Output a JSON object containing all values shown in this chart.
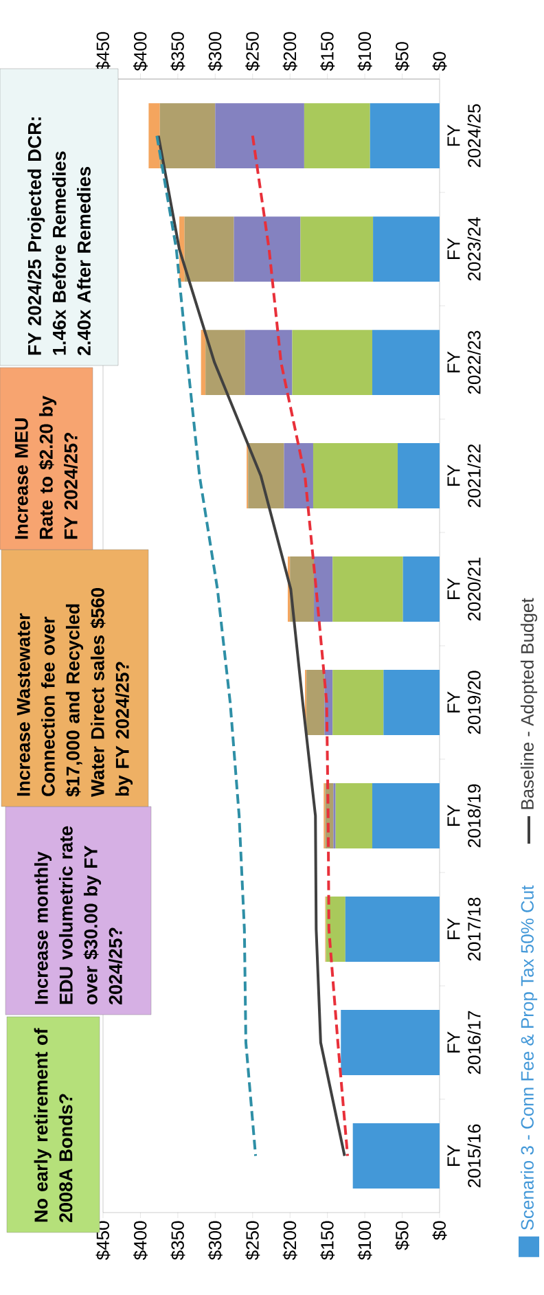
{
  "chart_data": {
    "type": "bar",
    "stacked": true,
    "orientation": "horizontal",
    "categories": [
      "FY 2024/25",
      "FY 2023/24",
      "FY 2022/23",
      "FY 2021/22",
      "FY 2020/21",
      "FY 2019/20",
      "FY 2018/19",
      "FY 2017/18",
      "FY 2016/17",
      "FY 2015/16"
    ],
    "series": [
      {
        "name": "Scenario 3 - Conn Fee & Prop Tax 50% Cut",
        "color": "#4398d8",
        "values": [
          93,
          89,
          90,
          56,
          49,
          75,
          90,
          126,
          132,
          116
        ]
      },
      {
        "color": "#a9c95b",
        "values": [
          88,
          97,
          107,
          113,
          94,
          68,
          49,
          26,
          0,
          0
        ]
      },
      {
        "color": "#8482c0",
        "values": [
          119,
          89,
          63,
          39,
          25,
          11,
          3,
          0,
          0,
          0
        ]
      },
      {
        "color": "#b0a06c",
        "values": [
          74,
          66,
          53,
          48,
          32,
          24,
          11,
          0,
          0,
          0
        ]
      },
      {
        "color": "#f4a55e",
        "values": [
          15,
          7,
          6,
          2,
          3,
          2,
          2,
          1,
          0,
          0
        ]
      },
      {
        "name": "Baseline - Adopted Budget",
        "type": "line",
        "color": "#404040",
        "line_style": "solid",
        "values": [
          376,
          348,
          301,
          239,
          199,
          183,
          166,
          165,
          159,
          127
        ]
      },
      {
        "type": "line",
        "color": "#2e8fa6",
        "line_style": "dashed",
        "values": [
          378,
          352,
          337,
          321,
          297,
          280,
          268,
          261,
          259,
          246
        ]
      },
      {
        "type": "line",
        "color": "#e8303a",
        "line_style": "dashed",
        "values": [
          250,
          228,
          212,
          180,
          165,
          151,
          149,
          148,
          136,
          123
        ]
      }
    ],
    "xlim": [
      450,
      0
    ],
    "xticks": [
      {
        "value": 450,
        "label": "$450"
      },
      {
        "value": 400,
        "label": "$400"
      },
      {
        "value": 350,
        "label": "$350"
      },
      {
        "value": 300,
        "label": "$300"
      },
      {
        "value": 250,
        "label": "$250"
      },
      {
        "value": 200,
        "label": "$200"
      },
      {
        "value": 150,
        "label": "$150"
      },
      {
        "value": 100,
        "label": "$100"
      },
      {
        "value": 50,
        "label": "$50"
      },
      {
        "value": 0,
        "label": "$0"
      }
    ],
    "x2lim": [
      450,
      0
    ],
    "x2ticks": [
      {
        "value": 450,
        "label": "$450"
      },
      {
        "value": 400,
        "label": "$400"
      },
      {
        "value": 350,
        "label": "$350"
      },
      {
        "value": 300,
        "label": "$300"
      },
      {
        "value": 250,
        "label": "$250"
      },
      {
        "value": 200,
        "label": "$200"
      },
      {
        "value": 150,
        "label": "$150"
      },
      {
        "value": 100,
        "label": "$100"
      },
      {
        "value": 50,
        "label": "$50"
      },
      {
        "value": 0,
        "label": "$0"
      }
    ],
    "legend": "right",
    "annotations": [
      "No early retirement of 2008A Bonds?",
      "Increase monthly EDU volumetric rate over $30.00 by FY 2024/25?",
      "Increase Wastewater Connection fee over $17,000 and Recycled Water Direct sales $560 by FY 2024/25?",
      "Increase MEU Rate to $2.20 by FY 2024/25?",
      "FY 2024/25 Projected DCR:",
      "1.46x  Before Remedies",
      "2.40x After Remedies"
    ]
  }
}
